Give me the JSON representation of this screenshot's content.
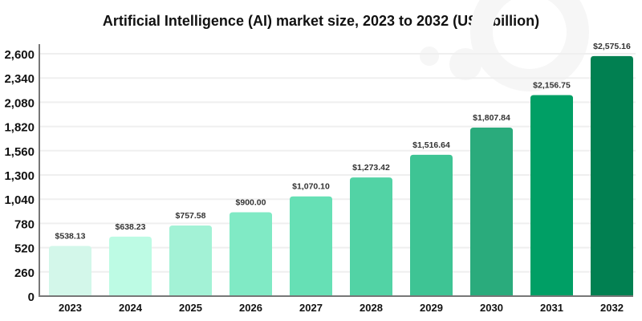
{
  "chart_data": {
    "type": "bar",
    "title": "Artificial Intelligence (AI) market size, 2023 to 2032 (USD billion)",
    "xlabel": "",
    "ylabel": "",
    "categories": [
      "2023",
      "2024",
      "2025",
      "2026",
      "2027",
      "2028",
      "2029",
      "2030",
      "2031",
      "2032"
    ],
    "values": [
      538.13,
      638.23,
      757.58,
      900.0,
      1070.1,
      1273.42,
      1516.64,
      1807.84,
      2156.75,
      2575.16
    ],
    "data_labels": [
      "$538.13",
      "$638.23",
      "$757.58",
      "$900.00",
      "$1,070.10",
      "$1,273.42",
      "$1,516.64",
      "$1,807.84",
      "$2,156.75",
      "$2,575.16"
    ],
    "ylim": [
      0,
      2600
    ],
    "yticks": [
      0,
      260,
      520,
      780,
      1040,
      1300,
      1560,
      1820,
      2080,
      2340,
      2600
    ],
    "ytick_labels": [
      "0",
      "260",
      "520",
      "780",
      "1,040",
      "1,300",
      "1,560",
      "1,820",
      "2,080",
      "2,340",
      "2,600"
    ],
    "grid": true,
    "bar_colors": [
      "#d3f7ea",
      "#bdfbe4",
      "#a3f2d6",
      "#80eac5",
      "#66e0b5",
      "#52d3a5",
      "#3ec494",
      "#2aab7c",
      "#009f65",
      "#018051"
    ]
  }
}
